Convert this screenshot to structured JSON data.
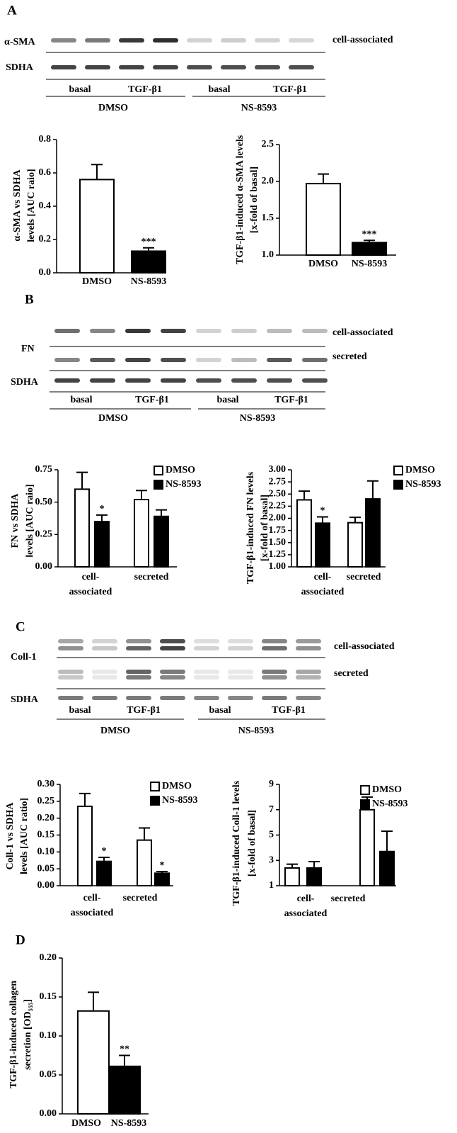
{
  "blots": [
    {
      "panel": "A",
      "rows": [
        "α-SMA",
        "SDHA"
      ],
      "right_labels": [
        "cell-associated"
      ],
      "lanes": [
        "basal",
        "TGF-β1",
        "basal",
        "TGF-β1"
      ],
      "treatments": [
        "DMSO",
        "NS-8593"
      ]
    },
    {
      "panel": "B",
      "rows": [
        "FN",
        "SDHA"
      ],
      "right_labels": [
        "cell-associated",
        "secreted"
      ],
      "lanes": [
        "basal",
        "TGF-β1",
        "basal",
        "TGF-β1"
      ],
      "treatments": [
        "DMSO",
        "NS-8593"
      ]
    },
    {
      "panel": "C",
      "rows": [
        "Coll-1",
        "SDHA"
      ],
      "right_labels": [
        "cell-associated",
        "secreted"
      ],
      "lanes": [
        "basal",
        "TGF-β1",
        "basal",
        "TGF-β1"
      ],
      "treatments": [
        "DMSO",
        "NS-8593"
      ]
    }
  ],
  "panel_D": "D",
  "chart_data": [
    {
      "type": "bar",
      "ylabel": [
        "α-SMA vs SDHA",
        "levels [AUC raio]"
      ],
      "categories": [
        "DMSO",
        "NS-8593"
      ],
      "values": [
        0.56,
        0.13
      ],
      "errors": [
        0.09,
        0.02
      ],
      "colors": [
        "#ffffff",
        "#000000"
      ],
      "significance": [
        null,
        "***"
      ],
      "ylim": [
        0,
        0.8
      ],
      "yticks": [
        {
          "value": 0,
          "label": "0.0"
        },
        0.2,
        0.4,
        0.6,
        0.8
      ]
    },
    {
      "type": "bar",
      "ylabel": [
        "TGF-β1-induced α-SMA levels",
        "[x-fold of basal]"
      ],
      "categories": [
        "DMSO",
        "NS-8593"
      ],
      "values": [
        1.97,
        1.17
      ],
      "errors": [
        0.13,
        0.03
      ],
      "colors": [
        "#ffffff",
        "#000000"
      ],
      "significance": [
        null,
        "***"
      ],
      "ylim": [
        1,
        2.5
      ],
      "yticks": [
        {
          "value": 1,
          "label": "1.0"
        },
        1.5,
        {
          "value": 2,
          "label": "2.0"
        },
        2.5
      ]
    },
    {
      "type": "bar",
      "ylabel": [
        "FN vs SDHA",
        "levels [AUC raio]"
      ],
      "categories": [
        "cell-associated",
        "secreted"
      ],
      "series": [
        {
          "name": "DMSO",
          "color": "#ffffff",
          "values": [
            0.6,
            0.52
          ],
          "errors": [
            0.13,
            0.07
          ],
          "significance": [
            null,
            null
          ]
        },
        {
          "name": "NS-8593",
          "color": "#000000",
          "values": [
            0.35,
            0.39
          ],
          "errors": [
            0.05,
            0.05
          ],
          "significance": [
            "*",
            null
          ]
        }
      ],
      "ylim": [
        0,
        0.75
      ],
      "yticks": [
        {
          "value": 0,
          "label": "0.00"
        },
        0.25,
        {
          "value": 0.5,
          "label": "0.50"
        },
        0.75
      ]
    },
    {
      "type": "bar",
      "ylabel": [
        "TGF-β1-induced FN levels",
        "[x-fold of basal]"
      ],
      "categories": [
        "cell-associated",
        "secreted"
      ],
      "series": [
        {
          "name": "DMSO",
          "color": "#ffffff",
          "values": [
            2.38,
            1.91
          ],
          "errors": [
            0.18,
            0.11
          ],
          "significance": [
            null,
            null
          ]
        },
        {
          "name": "NS-8593",
          "color": "#000000",
          "values": [
            1.9,
            2.4
          ],
          "errors": [
            0.13,
            0.37
          ],
          "significance": [
            "*",
            null
          ]
        }
      ],
      "ylim": [
        1,
        3
      ],
      "yticks": [
        {
          "value": 1,
          "label": "1.00"
        },
        1.25,
        {
          "value": 1.5,
          "label": "1.50"
        },
        1.75,
        {
          "value": 2,
          "label": "2.00"
        },
        2.25,
        {
          "value": 2.5,
          "label": "2.50"
        },
        2.75,
        {
          "value": 3,
          "label": "3.00"
        }
      ]
    },
    {
      "type": "bar",
      "ylabel": [
        "Coll-1 vs SDHA",
        "levels [AUC ratio]"
      ],
      "categories": [
        "cell-associated",
        "secreted"
      ],
      "series": [
        {
          "name": "DMSO",
          "color": "#ffffff",
          "values": [
            0.235,
            0.135
          ],
          "errors": [
            0.038,
            0.036
          ],
          "significance": [
            null,
            null
          ]
        },
        {
          "name": "NS-8593",
          "color": "#000000",
          "values": [
            0.072,
            0.037
          ],
          "errors": [
            0.012,
            0.005
          ],
          "significance": [
            "*",
            "*"
          ]
        }
      ],
      "ylim": [
        0,
        0.3
      ],
      "yticks": [
        {
          "value": 0,
          "label": "0.00"
        },
        0.05,
        {
          "value": 0.1,
          "label": "0.10"
        },
        0.15,
        {
          "value": 0.2,
          "label": "0.20"
        },
        0.25,
        {
          "value": 0.3,
          "label": "0.30"
        }
      ]
    },
    {
      "type": "bar",
      "ylabel": [
        "TGF-β1-induced Coll-1 levels",
        "[x-fold of basal]"
      ],
      "categories": [
        "cell-associated",
        "secreted"
      ],
      "series": [
        {
          "name": "DMSO",
          "color": "#ffffff",
          "values": [
            2.4,
            7.0
          ],
          "errors": [
            0.3,
            1.0
          ],
          "significance": [
            null,
            null
          ]
        },
        {
          "name": "NS-8593",
          "color": "#000000",
          "values": [
            2.4,
            3.7
          ],
          "errors": [
            0.5,
            1.6
          ],
          "significance": [
            null,
            null
          ]
        }
      ],
      "ylim": [
        1,
        9
      ],
      "yticks": [
        1,
        3,
        5,
        7,
        9
      ]
    },
    {
      "type": "bar",
      "ylabel": [
        "TGF-β1-induced collagen",
        "secretion [OD₅₅₅]"
      ],
      "categories": [
        "DMSO",
        "NS-8593"
      ],
      "values": [
        0.132,
        0.061
      ],
      "errors": [
        0.024,
        0.014
      ],
      "colors": [
        "#ffffff",
        "#000000"
      ],
      "significance": [
        null,
        "**"
      ],
      "ylim": [
        0,
        0.2
      ],
      "yticks": [
        {
          "value": 0,
          "label": "0.00"
        },
        0.05,
        {
          "value": 0.1,
          "label": "0.10"
        },
        0.15,
        {
          "value": 0.2,
          "label": "0.20"
        }
      ]
    }
  ]
}
